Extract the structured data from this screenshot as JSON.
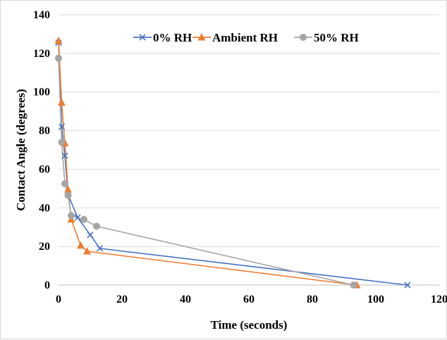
{
  "chart_data": {
    "type": "line",
    "title": "",
    "xlabel": "Time (seconds)",
    "ylabel": "Contact Angle (degrees)",
    "xlim": [
      0,
      120
    ],
    "ylim": [
      0,
      140
    ],
    "xticks": [
      0,
      20,
      40,
      60,
      80,
      100,
      120
    ],
    "yticks": [
      0,
      20,
      40,
      60,
      80,
      100,
      120,
      140
    ],
    "grid": "horizontal",
    "legend_position": "top-right",
    "series": [
      {
        "name": "0% RH",
        "color": "#4472C4",
        "marker": "x",
        "points": [
          [
            0,
            125.5
          ],
          [
            1,
            82
          ],
          [
            2,
            67
          ],
          [
            3,
            47
          ],
          [
            6,
            35
          ],
          [
            10,
            26
          ],
          [
            13,
            19
          ],
          [
            110,
            0
          ]
        ]
      },
      {
        "name": "Ambient RH",
        "color": "#ED7D31",
        "marker": "triangle",
        "points": [
          [
            0,
            126.5
          ],
          [
            1,
            94.5
          ],
          [
            2,
            73.5
          ],
          [
            3,
            49.5
          ],
          [
            4,
            34
          ],
          [
            7,
            20.5
          ],
          [
            9,
            17.5
          ],
          [
            94,
            0
          ]
        ]
      },
      {
        "name": "50% RH",
        "color": "#A5A5A5",
        "marker": "circle",
        "points": [
          [
            0,
            117.5
          ],
          [
            1,
            74
          ],
          [
            2,
            52.5
          ],
          [
            3,
            46.5
          ],
          [
            4,
            36
          ],
          [
            8,
            34
          ],
          [
            12,
            30.5
          ],
          [
            93,
            0
          ]
        ]
      }
    ]
  }
}
